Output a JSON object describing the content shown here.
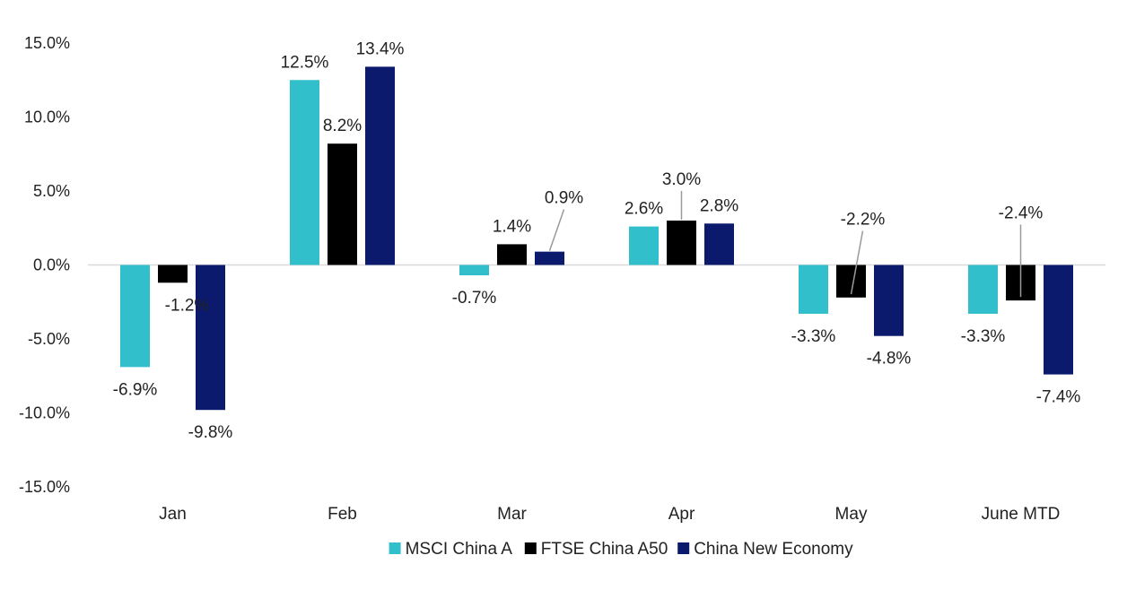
{
  "chart_data": {
    "type": "bar",
    "title": "",
    "xlabel": "",
    "ylabel": "",
    "categories": [
      "Jan",
      "Feb",
      "Mar",
      "Apr",
      "May",
      "June MTD"
    ],
    "series": [
      {
        "name": "MSCI China A",
        "color": "#32BFCC",
        "values": [
          -6.9,
          12.5,
          -0.7,
          2.6,
          -3.3,
          -3.3
        ],
        "labels": [
          "-6.9%",
          "12.5%",
          "-0.7%",
          "2.6%",
          "-3.3%",
          "-3.3%"
        ]
      },
      {
        "name": "FTSE China A50",
        "color": "#000000",
        "values": [
          -1.2,
          8.2,
          1.4,
          3.0,
          -2.2,
          -2.4
        ],
        "labels": [
          "-1.2%",
          "8.2%",
          "1.4%",
          "3.0%",
          "-2.2%",
          "-2.4%"
        ]
      },
      {
        "name": "China New Economy",
        "color": "#0C1A6E",
        "values": [
          -9.8,
          13.4,
          0.9,
          2.8,
          -4.8,
          -7.4
        ],
        "labels": [
          "-9.8%",
          "13.4%",
          "0.9%",
          "2.8%",
          "-4.8%",
          "-7.4%"
        ]
      }
    ],
    "ylim": [
      -15,
      15
    ],
    "yticks": [
      15,
      10,
      5,
      0,
      -5,
      -10,
      -15
    ],
    "ytick_labels": [
      "15.0%",
      "10.0%",
      "5.0%",
      "0.0%",
      "-5.0%",
      "-10.0%",
      "-15.0%"
    ],
    "grid": false,
    "legend_position": "bottom-center"
  }
}
